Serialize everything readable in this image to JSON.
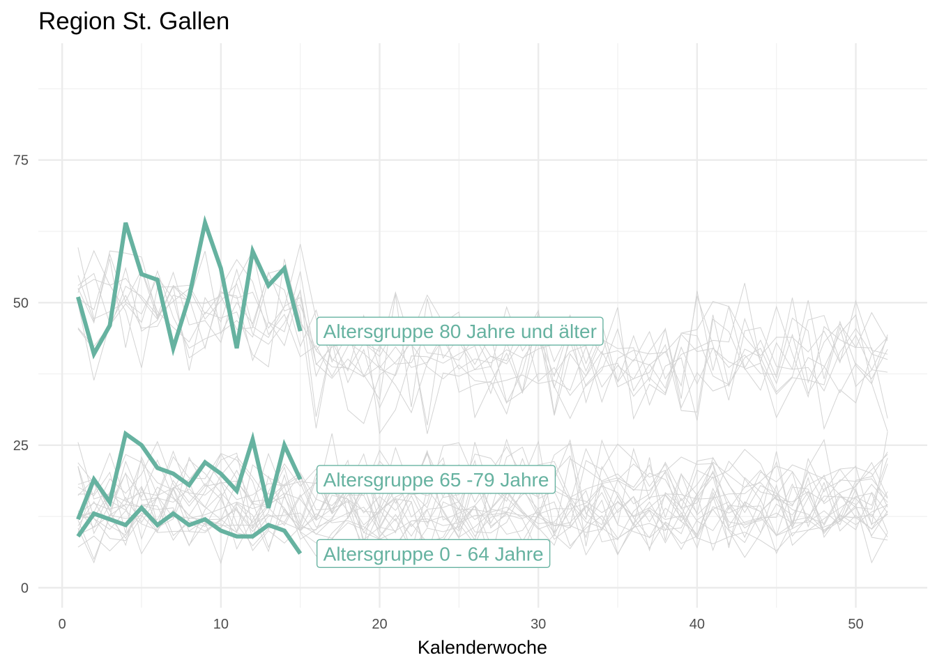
{
  "chart_data": {
    "type": "line",
    "title": "Region St. Gallen",
    "xlabel": "Kalenderwoche",
    "ylabel": "",
    "xlim": [
      -1.5,
      54.5
    ],
    "ylim": [
      -3.5,
      95.5
    ],
    "x_ticks": [
      0,
      10,
      20,
      30,
      40,
      50
    ],
    "y_ticks": [
      0,
      25,
      50,
      75
    ],
    "grid": true,
    "highlight_color": "#66b2a0",
    "background_color": "#d3d3d3",
    "series": [
      {
        "name": "Altersgruppe 80 Jahre und älter",
        "x": [
          1,
          2,
          3,
          4,
          5,
          6,
          7,
          8,
          9,
          10,
          11,
          12,
          13,
          14,
          15
        ],
        "values": [
          51,
          41,
          46,
          64,
          55,
          54,
          42,
          51,
          64,
          56,
          42,
          59,
          53,
          56,
          45
        ]
      },
      {
        "name": "Altersgruppe 65 -79 Jahre",
        "x": [
          1,
          2,
          3,
          4,
          5,
          6,
          7,
          8,
          9,
          10,
          11,
          12,
          13,
          14,
          15
        ],
        "values": [
          12,
          19,
          15,
          27,
          25,
          21,
          20,
          18,
          22,
          20,
          17,
          26,
          14,
          25,
          19
        ]
      },
      {
        "name": "Altersgruppe 0 - 64 Jahre",
        "x": [
          1,
          2,
          3,
          4,
          5,
          6,
          7,
          8,
          9,
          10,
          11,
          12,
          13,
          14,
          15
        ],
        "values": [
          9,
          13,
          12,
          11,
          14,
          11,
          13,
          11,
          12,
          10,
          9,
          9,
          11,
          10,
          6
        ]
      }
    ],
    "background_series_groups": [
      {
        "count": 10,
        "weeks": 52,
        "center": 40,
        "early_center": 51,
        "spread": 5
      },
      {
        "count": 10,
        "weeks": 52,
        "center": 17,
        "spread": 4
      },
      {
        "count": 10,
        "weeks": 52,
        "center": 12,
        "spread": 3
      }
    ]
  }
}
